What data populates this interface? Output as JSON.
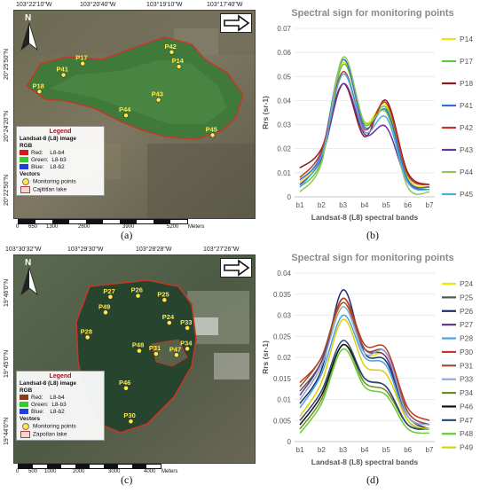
{
  "panel_a": {
    "caption": "(a)",
    "coords_top": [
      "103°22'10\"W",
      "103°20'40\"W",
      "103°19'10\"W",
      "103°17'40\"W"
    ],
    "coords_left": [
      "20°25'50\"N",
      "20°24'20\"N",
      "20°22'50\"N"
    ],
    "north": "N",
    "points": [
      {
        "id": "P17",
        "x": 0.285,
        "y": 0.255
      },
      {
        "id": "P41",
        "x": 0.205,
        "y": 0.31
      },
      {
        "id": "P18",
        "x": 0.105,
        "y": 0.39
      },
      {
        "id": "P42",
        "x": 0.655,
        "y": 0.2
      },
      {
        "id": "P14",
        "x": 0.685,
        "y": 0.27
      },
      {
        "id": "P43",
        "x": 0.6,
        "y": 0.43
      },
      {
        "id": "P44",
        "x": 0.465,
        "y": 0.505
      },
      {
        "id": "P45",
        "x": 0.825,
        "y": 0.6
      }
    ],
    "legend": {
      "title": "Legend",
      "image": "Landsat-8 (L8) image",
      "rgb": "RGB",
      "bands": [
        {
          "label": "Red:",
          "band": "L8-b4",
          "color": "#d7191c"
        },
        {
          "label": "Green:",
          "band": "L8-b3",
          "color": "#33cc33"
        },
        {
          "label": "Blue:",
          "band": "L8-b2",
          "color": "#1f3fdc"
        }
      ],
      "vectors": "Vectors",
      "points_label": "Monitoring points",
      "lake_label": "Cajititlan lake"
    },
    "scale": [
      "0",
      "650",
      "1300",
      "2600",
      "3900",
      "5200"
    ],
    "scale_unit": "Meters"
  },
  "panel_b": {
    "caption": "(b)",
    "chart_data": {
      "type": "line",
      "title": "Spectral sign for monitoring points",
      "xlabel": "Landsat-8 (L8) spectral bands",
      "ylabel": "Rrs (sr-1)",
      "categories": [
        "b1",
        "b2",
        "b3",
        "b4",
        "b5",
        "b6",
        "b7"
      ],
      "ylim": [
        0,
        0.07
      ],
      "yticks": [
        "0",
        "0.01",
        "0.02",
        "0.03",
        "0.04",
        "0.05",
        "0.06",
        "0.07"
      ],
      "series": [
        {
          "name": "P14",
          "color": "#f2e600",
          "values": [
            0.006,
            0.018,
            0.056,
            0.031,
            0.038,
            0.008,
            0.004
          ]
        },
        {
          "name": "P17",
          "color": "#5cc83b",
          "values": [
            0.004,
            0.015,
            0.055,
            0.03,
            0.037,
            0.007,
            0.004
          ]
        },
        {
          "name": "P18",
          "color": "#8b1a1a",
          "values": [
            0.012,
            0.02,
            0.047,
            0.025,
            0.04,
            0.01,
            0.005
          ]
        },
        {
          "name": "P41",
          "color": "#3070d0",
          "values": [
            0.007,
            0.018,
            0.057,
            0.029,
            0.036,
            0.007,
            0.004
          ]
        },
        {
          "name": "P42",
          "color": "#c0392b",
          "values": [
            0.008,
            0.019,
            0.052,
            0.028,
            0.039,
            0.009,
            0.005
          ]
        },
        {
          "name": "P43",
          "color": "#7030a0",
          "values": [
            0.005,
            0.016,
            0.047,
            0.026,
            0.029,
            0.006,
            0.003
          ]
        },
        {
          "name": "P44",
          "color": "#8fc85a",
          "values": [
            0.002,
            0.014,
            0.058,
            0.031,
            0.035,
            0.004,
            0.002
          ]
        },
        {
          "name": "P45",
          "color": "#4aaee0",
          "values": [
            0.004,
            0.017,
            0.051,
            0.027,
            0.033,
            0.006,
            0.003
          ]
        }
      ]
    }
  },
  "panel_c": {
    "caption": "(c)",
    "coords_top": [
      "103°30'32\"W",
      "103°29'30\"W",
      "103°28'28\"W",
      "103°27'26\"W"
    ],
    "coords_left": [
      "19°46'0\"N",
      "19°45'0\"N",
      "19°44'0\"N"
    ],
    "north": "N",
    "points": [
      {
        "id": "P27",
        "x": 0.4,
        "y": 0.2
      },
      {
        "id": "P26",
        "x": 0.515,
        "y": 0.195
      },
      {
        "id": "P25",
        "x": 0.625,
        "y": 0.215
      },
      {
        "id": "P49",
        "x": 0.38,
        "y": 0.275
      },
      {
        "id": "P24",
        "x": 0.645,
        "y": 0.325
      },
      {
        "id": "P33",
        "x": 0.72,
        "y": 0.35
      },
      {
        "id": "P28",
        "x": 0.305,
        "y": 0.395
      },
      {
        "id": "P48",
        "x": 0.52,
        "y": 0.46
      },
      {
        "id": "P31",
        "x": 0.59,
        "y": 0.475
      },
      {
        "id": "P34",
        "x": 0.72,
        "y": 0.45
      },
      {
        "id": "P47",
        "x": 0.675,
        "y": 0.48
      },
      {
        "id": "P46",
        "x": 0.465,
        "y": 0.64
      },
      {
        "id": "P30",
        "x": 0.485,
        "y": 0.8
      }
    ],
    "legend": {
      "title": "Legend",
      "image": "Landsat-8 (L8) image",
      "rgb": "RGB",
      "bands": [
        {
          "label": "Red:",
          "band": "L8-b4",
          "color": "#8b3a1a"
        },
        {
          "label": "Green:",
          "band": "L8-b3",
          "color": "#33cc33"
        },
        {
          "label": "Blue:",
          "band": "L8-b2",
          "color": "#1f3fdc"
        }
      ],
      "vectors": "Vectors",
      "points_label": "Monitoring points",
      "lake_label": "Zapotlan lake"
    },
    "scale": [
      "0",
      "500",
      "1000",
      "2000",
      "3000",
      "4000"
    ],
    "scale_unit": "Meters"
  },
  "panel_d": {
    "caption": "(d)",
    "chart_data": {
      "type": "line",
      "title": "Spectral sign for monitoring points",
      "xlabel": "Landsat-8 (L8) spectral bands",
      "ylabel": "Rrs (sr-1)",
      "categories": [
        "b1",
        "b2",
        "b3",
        "b4",
        "b5",
        "b6",
        "b7"
      ],
      "ylim": [
        0,
        0.04
      ],
      "yticks": [
        "0",
        "0.005",
        "0.01",
        "0.015",
        "0.02",
        "0.025",
        "0.03",
        "0.035",
        "0.04"
      ],
      "series": [
        {
          "name": "P24",
          "color": "#f2e600",
          "values": [
            0.01,
            0.018,
            0.033,
            0.021,
            0.02,
            0.006,
            0.004
          ]
        },
        {
          "name": "P25",
          "color": "#555555",
          "values": [
            0.012,
            0.019,
            0.034,
            0.022,
            0.021,
            0.007,
            0.004
          ]
        },
        {
          "name": "P26",
          "color": "#1a2e6e",
          "values": [
            0.009,
            0.017,
            0.036,
            0.021,
            0.019,
            0.006,
            0.003
          ]
        },
        {
          "name": "P27",
          "color": "#5b3a8c",
          "values": [
            0.011,
            0.019,
            0.034,
            0.022,
            0.02,
            0.006,
            0.004
          ]
        },
        {
          "name": "P28",
          "color": "#4aa3df",
          "values": [
            0.008,
            0.016,
            0.03,
            0.02,
            0.018,
            0.005,
            0.003
          ]
        },
        {
          "name": "P30",
          "color": "#c0392b",
          "values": [
            0.014,
            0.02,
            0.034,
            0.023,
            0.022,
            0.008,
            0.005
          ]
        },
        {
          "name": "P31",
          "color": "#a0522d",
          "values": [
            0.013,
            0.02,
            0.033,
            0.022,
            0.021,
            0.007,
            0.004
          ]
        },
        {
          "name": "P33",
          "color": "#8fa8e0",
          "values": [
            0.01,
            0.018,
            0.032,
            0.021,
            0.021,
            0.006,
            0.004
          ]
        },
        {
          "name": "P34",
          "color": "#6b8e23",
          "values": [
            0.003,
            0.01,
            0.023,
            0.014,
            0.012,
            0.004,
            0.003
          ]
        },
        {
          "name": "P46",
          "color": "#111111",
          "values": [
            0.004,
            0.011,
            0.023,
            0.015,
            0.013,
            0.004,
            0.003
          ]
        },
        {
          "name": "P47",
          "color": "#2e4a7a",
          "values": [
            0.005,
            0.012,
            0.024,
            0.015,
            0.013,
            0.004,
            0.003
          ]
        },
        {
          "name": "P48",
          "color": "#66cc33",
          "values": [
            0.002,
            0.009,
            0.022,
            0.013,
            0.011,
            0.003,
            0.002
          ]
        },
        {
          "name": "P49",
          "color": "#e0d000",
          "values": [
            0.006,
            0.014,
            0.029,
            0.018,
            0.016,
            0.005,
            0.003
          ]
        }
      ]
    }
  }
}
